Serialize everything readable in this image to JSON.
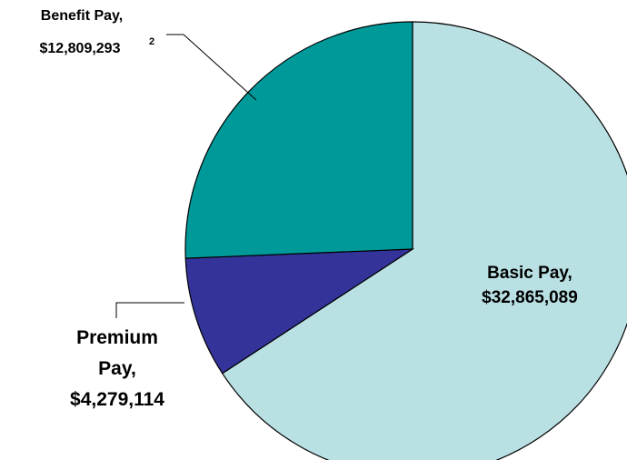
{
  "chart_data": {
    "type": "pie",
    "slices": [
      {
        "name": "Basic Pay",
        "value": 32865089,
        "label_line1": "Basic Pay,",
        "label_line2": "$32,865,089",
        "color": "#B9E0E3"
      },
      {
        "name": "Premium Pay",
        "value": 4279114,
        "label_line1": "Premium",
        "label_line2": "Pay,",
        "label_line3": "$4,279,114",
        "color": "#333399"
      },
      {
        "name": "Benefit Pay",
        "value": 12809293,
        "label_line1": "Benefit Pay,",
        "label_line2": "$12,809,293",
        "footnote": "2",
        "color": "#009999"
      }
    ],
    "legend": "none",
    "title": ""
  }
}
